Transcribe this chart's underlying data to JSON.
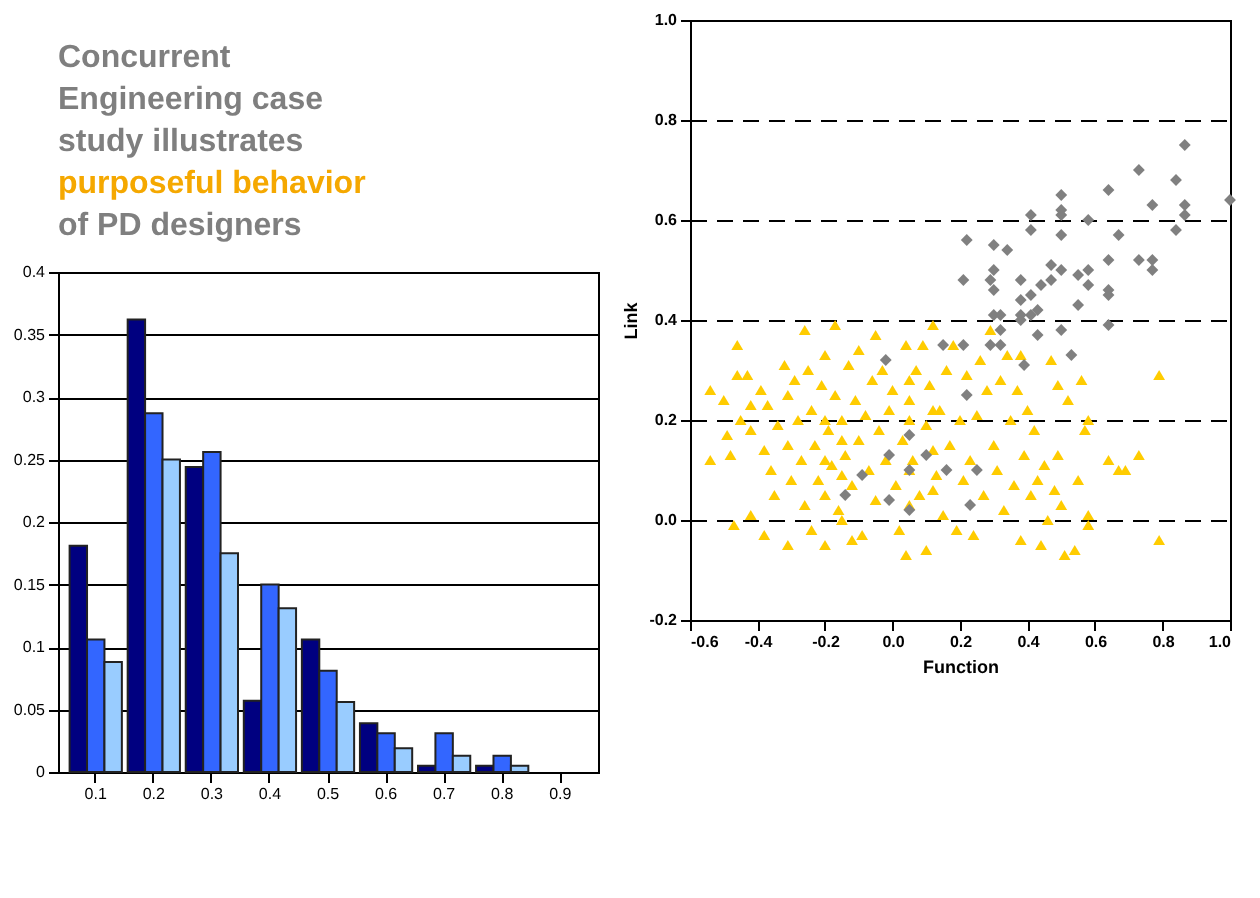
{
  "chart_data": [
    {
      "type": "bar",
      "title": "Concurrent Engineering case study illustrates",
      "subtitle": "purposeful behavior",
      "annotations": [
        "of PD designers"
      ],
      "categories": [
        "0.1",
        "0.2",
        "0.3",
        "0.4",
        "0.5",
        "0.6",
        "0.7",
        "0.8",
        "0.9"
      ],
      "series": [
        {
          "color": "#000080",
          "values": [
            0.181,
            0.362,
            0.244,
            0.057,
            0.106,
            0.039,
            0.005,
            0.005,
            0
          ]
        },
        {
          "color": "#3366ff",
          "values": [
            0.106,
            0.287,
            0.256,
            0.15,
            0.081,
            0.031,
            0.031,
            0.013,
            0
          ]
        },
        {
          "color": "#99ccff",
          "values": [
            0.088,
            0.25,
            0.175,
            0.131,
            0.056,
            0.019,
            0.013,
            0.005,
            0
          ]
        }
      ],
      "ylim": [
        0,
        0.4
      ],
      "yticks": [
        0,
        0.05,
        0.1,
        0.15,
        0.2,
        0.25,
        0.3,
        0.35,
        0.4
      ],
      "grid": "y"
    },
    {
      "type": "scatter",
      "xlabel": "Function",
      "ylabel": "Link",
      "xlim": [
        -0.6,
        1.0
      ],
      "ylim": [
        -0.2,
        1.0
      ],
      "xticks": [
        -0.6,
        -0.4,
        -0.2,
        {
          "value": 0,
          "label": "0.0"
        },
        0.2,
        0.4,
        0.6,
        0.8,
        {
          "value": 1,
          "label": "1.0"
        }
      ],
      "yticks": [
        -0.2,
        {
          "value": 0,
          "label": "0.0"
        },
        0.2,
        0.4,
        0.6,
        0.8,
        {
          "value": 1,
          "label": "1.0"
        }
      ],
      "grid": "y",
      "line_style": "dashed",
      "series": [
        {
          "color": "#ffcc00",
          "marker": "triangle",
          "x": [
            -0.54,
            -0.54,
            -0.5,
            -0.49,
            -0.48,
            -0.47,
            -0.46,
            -0.46,
            -0.45,
            -0.43,
            -0.42,
            -0.42,
            -0.42,
            -0.39,
            -0.38,
            -0.38,
            -0.37,
            -0.36,
            -0.35,
            -0.34,
            -0.32,
            -0.31,
            -0.31,
            -0.31,
            -0.3,
            -0.29,
            -0.28,
            -0.27,
            -0.26,
            -0.26,
            -0.25,
            -0.24,
            -0.24,
            -0.23,
            -0.22,
            -0.21,
            -0.2,
            -0.2,
            -0.19,
            -0.18,
            -0.17,
            -0.17,
            -0.16,
            -0.15,
            -0.14,
            -0.13,
            -0.12,
            -0.12,
            -0.11,
            -0.1,
            -0.1,
            -0.09,
            -0.08,
            -0.07,
            -0.06,
            -0.05,
            -0.05,
            -0.04,
            -0.03,
            -0.02,
            -0.01,
            0.0,
            0.01,
            0.02,
            0.03,
            0.04,
            0.04,
            0.05,
            0.06,
            0.07,
            0.08,
            0.09,
            0.1,
            0.1,
            0.11,
            0.12,
            0.13,
            0.14,
            0.15,
            0.16,
            0.17,
            0.18,
            0.19,
            0.2,
            0.21,
            0.22,
            0.23,
            0.24,
            0.25,
            0.26,
            0.27,
            0.28,
            0.29,
            0.3,
            0.31,
            0.32,
            0.33,
            0.34,
            0.35,
            0.36,
            0.37,
            0.38,
            0.38,
            0.39,
            0.4,
            0.41,
            0.42,
            0.43,
            0.44,
            0.45,
            0.46,
            0.47,
            0.48,
            0.49,
            0.49,
            0.5,
            0.51,
            0.52,
            0.54,
            0.55,
            0.56,
            0.57,
            0.58,
            0.58,
            0.58,
            0.64,
            0.67,
            0.69,
            0.73,
            0.79,
            0.79,
            -0.2,
            -0.2,
            -0.2,
            -0.15,
            -0.15,
            -0.15,
            0.05,
            0.05,
            0.05,
            0.05,
            0.12,
            0.12,
            0.12
          ],
          "values": [
            0.26,
            0.12,
            0.24,
            0.17,
            0.13,
            -0.01,
            0.35,
            0.29,
            0.2,
            0.29,
            0.23,
            0.18,
            0.01,
            0.26,
            0.14,
            -0.03,
            0.23,
            0.1,
            0.05,
            0.19,
            0.31,
            0.25,
            0.15,
            -0.05,
            0.08,
            0.28,
            0.2,
            0.12,
            0.38,
            0.03,
            0.3,
            0.22,
            -0.02,
            0.15,
            0.08,
            0.27,
            0.33,
            -0.05,
            0.18,
            0.11,
            0.39,
            0.25,
            0.02,
            0.2,
            0.13,
            0.31,
            -0.04,
            0.07,
            0.24,
            0.34,
            0.16,
            -0.03,
            0.21,
            0.1,
            0.28,
            0.37,
            0.04,
            0.18,
            0.3,
            0.12,
            0.22,
            0.26,
            0.07,
            -0.02,
            0.16,
            -0.07,
            0.35,
            0.24,
            0.12,
            0.3,
            0.05,
            0.35,
            0.19,
            -0.06,
            0.27,
            0.39,
            0.09,
            0.22,
            0.01,
            0.3,
            0.15,
            0.35,
            -0.02,
            0.2,
            0.08,
            0.29,
            0.12,
            -0.03,
            0.21,
            0.32,
            0.05,
            0.26,
            0.38,
            0.15,
            0.1,
            0.28,
            0.02,
            0.33,
            0.2,
            0.07,
            0.26,
            -0.04,
            0.33,
            0.13,
            0.22,
            0.05,
            0.18,
            0.08,
            -0.05,
            0.11,
            0.0,
            0.32,
            0.06,
            0.27,
            0.13,
            0.03,
            -0.07,
            0.24,
            -0.06,
            0.08,
            0.28,
            0.18,
            0.2,
            0.01,
            -0.01,
            0.12,
            0.1,
            0.1,
            0.13,
            0.29,
            -0.04,
            0.05,
            0.12,
            0.2,
            0.0,
            0.09,
            0.16,
            0.03,
            0.1,
            0.2,
            0.28,
            0.06,
            0.14,
            0.22
          ]
        },
        {
          "color": "#808080",
          "marker": "diamond",
          "x": [
            1.0,
            0.866,
            0.866,
            0.866,
            0.84,
            0.84,
            0.77,
            0.77,
            0.77,
            0.73,
            0.73,
            0.67,
            0.64,
            0.64,
            0.64,
            0.64,
            0.64,
            0.58,
            0.58,
            0.58,
            0.55,
            0.55,
            0.53,
            0.5,
            0.5,
            0.5,
            0.5,
            0.5,
            0.5,
            0.47,
            0.47,
            0.44,
            0.43,
            0.43,
            0.41,
            0.41,
            0.41,
            0.41,
            0.38,
            0.38,
            0.38,
            0.38,
            0.39,
            0.34,
            0.32,
            0.32,
            0.32,
            0.3,
            0.3,
            0.3,
            0.3,
            0.29,
            0.29,
            0.22,
            0.21,
            0.21,
            0.22,
            0.23,
            0.15,
            0.16,
            0.1,
            0.25,
            0.05,
            0.05,
            0.05,
            -0.01,
            -0.01,
            -0.02,
            -0.09,
            -0.14
          ],
          "values": [
            0.64,
            0.75,
            0.63,
            0.61,
            0.68,
            0.58,
            0.63,
            0.52,
            0.5,
            0.7,
            0.52,
            0.57,
            0.66,
            0.52,
            0.46,
            0.45,
            0.39,
            0.6,
            0.5,
            0.47,
            0.49,
            0.43,
            0.33,
            0.65,
            0.62,
            0.61,
            0.57,
            0.5,
            0.38,
            0.51,
            0.48,
            0.47,
            0.42,
            0.37,
            0.61,
            0.58,
            0.45,
            0.41,
            0.48,
            0.44,
            0.41,
            0.4,
            0.31,
            0.54,
            0.41,
            0.38,
            0.35,
            0.55,
            0.5,
            0.46,
            0.41,
            0.48,
            0.35,
            0.56,
            0.48,
            0.35,
            0.25,
            0.03,
            0.35,
            0.1,
            0.13,
            0.1,
            0.17,
            0.1,
            0.02,
            0.13,
            0.04,
            0.32,
            0.09,
            0.05
          ]
        }
      ]
    }
  ]
}
